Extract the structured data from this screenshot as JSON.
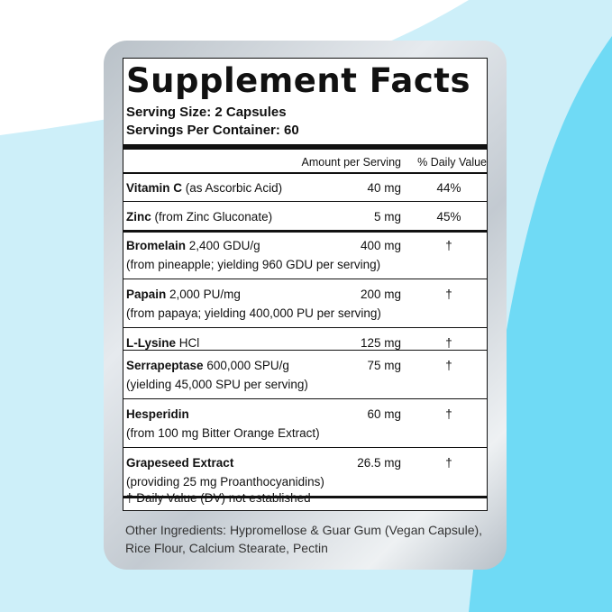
{
  "title": "Supplement Facts",
  "serving_size": "Serving Size: 2 Capsules",
  "servings_per_container": "Servings Per Container: 60",
  "header": {
    "amount": "Amount per Serving",
    "dv": "% Daily Value"
  },
  "rows": [
    {
      "name": "Vitamin C",
      "detail": "(as Ascorbic Acid)",
      "amount": "40 mg",
      "dv": "44%"
    },
    {
      "name": "Zinc",
      "detail": "(from Zinc Gluconate)",
      "amount": "5 mg",
      "dv": "45%"
    },
    {
      "name": "Bromelain",
      "detail": "2,400 GDU/g",
      "line2": "(from pineapple; yielding 960 GDU per serving)",
      "amount": "400 mg",
      "dv": "†"
    },
    {
      "name": "Papain",
      "detail": "2,000 PU/mg",
      "line2": "(from papaya; yielding 400,000 PU per serving)",
      "amount": "200 mg",
      "dv": "†"
    },
    {
      "name": "L-Lysine",
      "detail": "HCl",
      "amount": "125 mg",
      "dv": "†"
    },
    {
      "name": "Serrapeptase",
      "detail": "600,000 SPU/g",
      "line2": "(yielding 45,000 SPU per serving)",
      "amount": "75 mg",
      "dv": "†"
    },
    {
      "name": "Hesperidin",
      "line2": "(from 100 mg Bitter Orange Extract)",
      "amount": "60 mg",
      "dv": "†"
    },
    {
      "name": "Grapeseed Extract",
      "line2": "(providing 25 mg Proanthocyanidins)",
      "amount": "26.5 mg",
      "dv": "†"
    }
  ],
  "footnote": "† Daily Value (DV) not established",
  "other_ingredients": "Other Ingredients: Hypromellose & Guar Gum (Vegan Capsule), Rice Flour, Calcium Stearate, Pectin"
}
